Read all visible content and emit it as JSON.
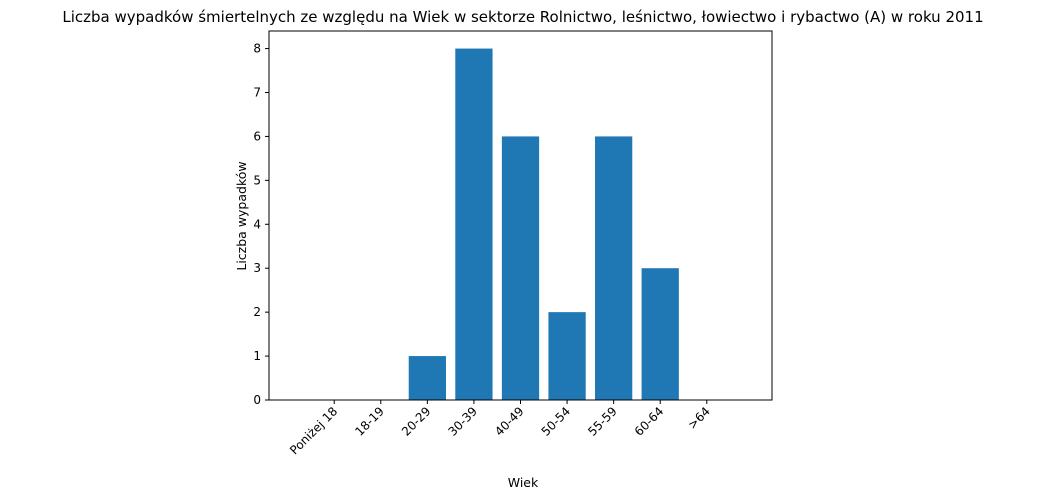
{
  "chart_data": {
    "type": "bar",
    "title": "Liczba wypadków śmiertelnych ze względu na Wiek w sektorze Rolnictwo, leśnictwo, łowiectwo i rybactwo (A) w roku 2011",
    "xlabel": "Wiek",
    "ylabel": "Liczba wypadków",
    "categories": [
      "Poniżej 18",
      "18-19",
      "20-29",
      "30-39",
      "40-49",
      "50-54",
      "55-59",
      "60-64",
      ">64"
    ],
    "values": [
      0,
      0,
      1,
      8,
      6,
      2,
      6,
      3,
      0
    ],
    "ylim": [
      0,
      8.4
    ],
    "yticks": [
      0,
      1,
      2,
      3,
      4,
      5,
      6,
      7,
      8
    ],
    "grid": false,
    "bar_color": "#1f77b4"
  }
}
